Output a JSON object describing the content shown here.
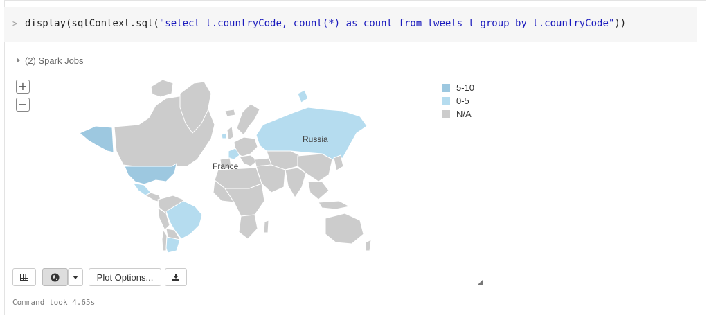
{
  "command": {
    "prompt": ">",
    "code_prefix": "display(sqlContext.sql(",
    "code_string": "\"select t.countryCode, count(*) as count from tweets t group by t.countryCode\"",
    "code_suffix": "))"
  },
  "spark_jobs_label": "(2) Spark Jobs",
  "map": {
    "zoom_in": "+",
    "zoom_out": "−",
    "labels": {
      "russia": "Russia",
      "france": "France"
    },
    "legend": [
      {
        "label": "5-10",
        "color": "#9dc8e0"
      },
      {
        "label": "0-5",
        "color": "#b5dcef"
      },
      {
        "label": "N/A",
        "color": "#cccccc"
      }
    ]
  },
  "toolbar": {
    "table_icon": "table-icon",
    "globe_icon": "globe-icon",
    "dropdown_icon": "caret-down-icon",
    "plot_options_label": "Plot Options...",
    "download_icon": "download-icon"
  },
  "status_text": "Command took 4.65s"
}
